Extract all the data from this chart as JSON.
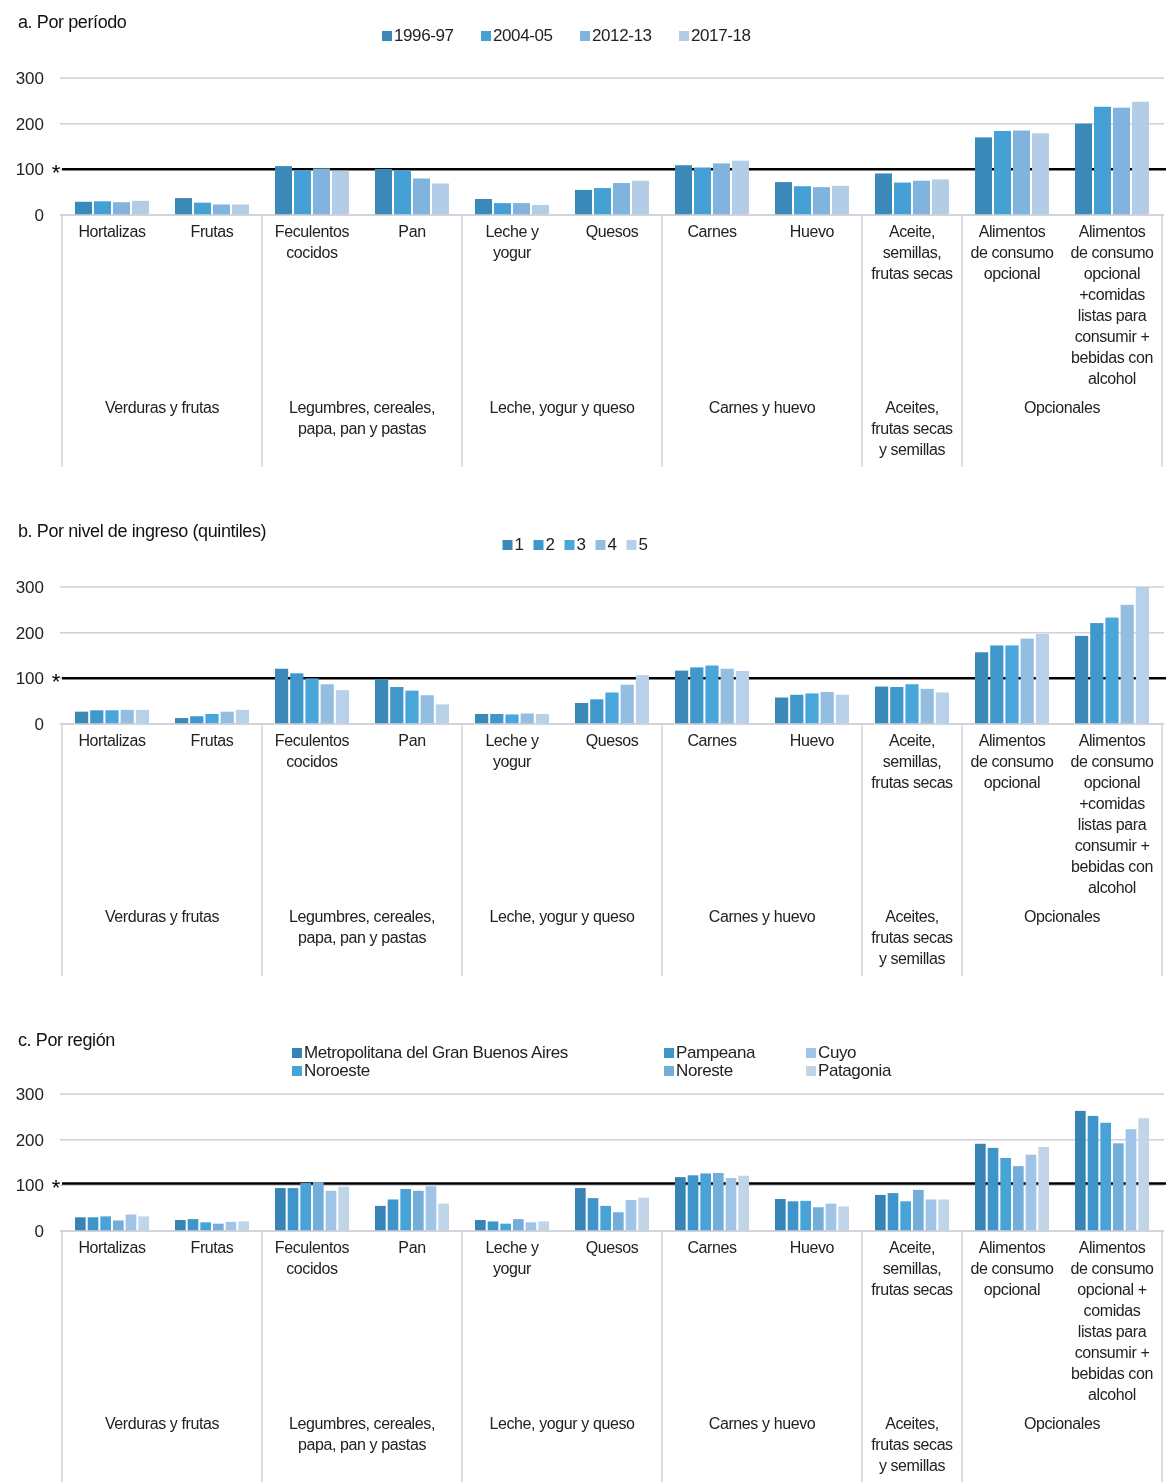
{
  "chart_data": [
    {
      "type": "bar",
      "title": "a. Por período",
      "categories": [
        "Hortalizas",
        "Frutas",
        "Feculentos\ncocidos",
        "Pan",
        "Leche y\nyogur",
        "Quesos",
        "Carnes",
        "Huevo",
        "Aceite,\nsemillas,\nfrutas secas",
        "Alimentos\nde consumo\nopcional",
        "Alimentos\nde consumo\nopcional\n+comidas\nlistas para\nconsumir +\nbebidas con\nalcohol"
      ],
      "ylim": [
        0,
        300
      ],
      "yticks": [
        0,
        100,
        200,
        300
      ],
      "grid": "y",
      "legend": "top",
      "ref_lines": [
        {
          "axis": "y",
          "value": 100,
          "label": "*"
        }
      ],
      "annotations": [
        "Verduras y frutas",
        "Legumbres, cereales,\npapa, pan y pastas",
        "Leche, yogur y queso",
        "Carnes y huevo",
        "Aceites,\nfrutas secas\ny semillas",
        "Opcionales"
      ],
      "series": [
        {
          "name": "1996-97",
          "color": "#3a89b9",
          "values": [
            29,
            37,
            107,
            101,
            35,
            55,
            109,
            72,
            91,
            170,
            200
          ]
        },
        {
          "name": "2004-05",
          "color": "#45a0d6",
          "values": [
            30,
            27,
            98,
            98,
            26,
            59,
            104,
            63,
            71,
            184,
            237
          ]
        },
        {
          "name": "2012-13",
          "color": "#80b3dd",
          "values": [
            28,
            23,
            102,
            80,
            26,
            70,
            113,
            61,
            75,
            185,
            235
          ]
        },
        {
          "name": "2017-18",
          "color": "#b3cde6",
          "values": [
            31,
            23,
            97,
            69,
            22,
            75,
            119,
            64,
            78,
            179,
            248
          ]
        }
      ]
    },
    {
      "type": "bar",
      "title": "b. Por nivel de ingreso (quintiles)",
      "categories": [
        "Hortalizas",
        "Frutas",
        "Feculentos\ncocidos",
        "Pan",
        "Leche y\nyogur",
        "Quesos",
        "Carnes",
        "Huevo",
        "Aceite,\nsemillas,\nfrutas secas",
        "Alimentos\nde consumo\nopcional",
        "Alimentos\nde consumo\nopcional\n+comidas\nlistas para\nconsumir +\nbebidas con\nalcohol"
      ],
      "ylim": [
        0,
        300
      ],
      "yticks": [
        0,
        100,
        200,
        300
      ],
      "grid": "y",
      "legend": "top",
      "ref_lines": [
        {
          "axis": "y",
          "value": 100,
          "label": "*"
        }
      ],
      "annotations": [
        "Verduras y frutas",
        "Legumbres, cereales,\npapa, pan y pastas",
        "Leche, yogur y queso",
        "Carnes y huevo",
        "Aceites,\nfrutas secas\ny semillas",
        "Opcionales"
      ],
      "series": [
        {
          "name": "1",
          "color": "#3a89b9",
          "values": [
            27,
            13,
            121,
            98,
            22,
            46,
            117,
            58,
            82,
            157,
            193
          ]
        },
        {
          "name": "2",
          "color": "#3f97cc",
          "values": [
            30,
            17,
            111,
            81,
            22,
            54,
            124,
            64,
            81,
            172,
            221
          ]
        },
        {
          "name": "3",
          "color": "#49a6db",
          "values": [
            30,
            22,
            100,
            73,
            21,
            69,
            128,
            67,
            87,
            172,
            233
          ]
        },
        {
          "name": "4",
          "color": "#94bde2",
          "values": [
            31,
            27,
            87,
            63,
            23,
            86,
            121,
            70,
            77,
            187,
            261
          ]
        },
        {
          "name": "5",
          "color": "#b8d0e8",
          "values": [
            31,
            31,
            74,
            43,
            22,
            107,
            116,
            64,
            69,
            197,
            300
          ]
        }
      ]
    },
    {
      "type": "bar",
      "title": "c. Por región",
      "categories": [
        "Hortalizas",
        "Frutas",
        "Feculentos\ncocidos",
        "Pan",
        "Leche y\nyogur",
        "Quesos",
        "Carnes",
        "Huevo",
        "Aceite,\nsemillas,\nfrutas secas",
        "Alimentos\nde consumo\nopcional",
        "Alimentos\nde consumo\nopcional +\ncomidas\nlistas para\nconsumir +\nbebidas con\nalcohol"
      ],
      "ylim": [
        0,
        300
      ],
      "yticks": [
        0,
        100,
        200,
        300
      ],
      "grid": "y",
      "legend": "top",
      "ref_lines": [
        {
          "axis": "y",
          "value": 104,
          "label": "*"
        }
      ],
      "annotations": [
        "Verduras y frutas",
        "Legumbres, cereales,\npapa, pan y pastas",
        "Leche, yogur y queso",
        "Carnes y huevo",
        "Aceites,\nfrutas secas\ny semillas",
        "Opcionales"
      ],
      "series": [
        {
          "name": "Metropolitana del Gran Buenos Aires",
          "color": "#3783b3",
          "values": [
            30,
            24,
            94,
            55,
            24,
            94,
            118,
            70,
            79,
            191,
            263
          ]
        },
        {
          "name": "Pampeana",
          "color": "#3d95cb",
          "values": [
            30,
            26,
            94,
            69,
            21,
            72,
            122,
            65,
            83,
            182,
            252
          ]
        },
        {
          "name": "Noroeste",
          "color": "#47a3d8",
          "values": [
            32,
            19,
            105,
            92,
            16,
            55,
            126,
            66,
            65,
            160,
            237
          ]
        },
        {
          "name": "Noreste",
          "color": "#72aed9",
          "values": [
            23,
            16,
            107,
            88,
            26,
            41,
            127,
            52,
            90,
            142,
            192
          ]
        },
        {
          "name": "Cuyo",
          "color": "#a0c3e8",
          "values": [
            36,
            20,
            88,
            98,
            19,
            68,
            116,
            60,
            69,
            167,
            223
          ]
        },
        {
          "name": "Patagonia",
          "color": "#c0d5e8",
          "values": [
            32,
            21,
            97,
            60,
            21,
            73,
            121,
            54,
            69,
            184,
            247
          ]
        }
      ]
    }
  ]
}
